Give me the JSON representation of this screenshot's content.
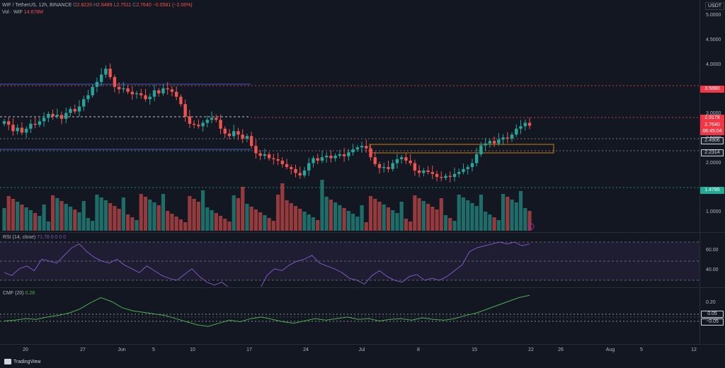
{
  "header": {
    "symbol": "WIF / TetherUS, 12h, BINANCE",
    "o_label": "O",
    "o_value": "2.8220",
    "h_label": "H",
    "h_value": "2.8489",
    "l_label": "L",
    "l_value": "2.7511",
    "c_label": "C",
    "c_value": "2.7640",
    "change": "−0.0581 (−2.06%)",
    "vol_label": "Vol · WIF",
    "vol_value": "14.678M"
  },
  "currency": "USDT",
  "price_axis": [
    "5.0000",
    "4.5000",
    "4.0000",
    "3.5000",
    "3.0000",
    "2.5000",
    "2.0000",
    "1.0000"
  ],
  "price_tags": [
    {
      "text": "3.5880",
      "color": "#f23645"
    },
    {
      "text": "2.9178",
      "color": "#f23645"
    },
    {
      "text": "2.7640",
      "color": "#f23645"
    },
    {
      "text": "06:45:04",
      "color": "#f23645"
    },
    {
      "text": "2.4906",
      "color": "#1e222d"
    },
    {
      "text": "2.2314",
      "color": "#1e222d"
    },
    {
      "text": "1.4780",
      "color": "#22ab94"
    }
  ],
  "rsi": {
    "label": "RSI (14, close)",
    "values": "71.78  0  0  0  0",
    "axis": [
      "60.00",
      "40.00"
    ]
  },
  "cmf": {
    "label": "CMF (20)",
    "value": "0.28",
    "axis": [
      "0.20",
      "0.05",
      "−0.05"
    ]
  },
  "time_axis": [
    "20",
    "27",
    "Jun",
    "5",
    "10",
    "17",
    "24",
    "Jul",
    "8",
    "15",
    "22",
    "26",
    "Aug",
    "5",
    "12"
  ],
  "brand": "TradingView",
  "colors": {
    "up": "#26a69a",
    "down": "#ef5350",
    "rsi": "#7e57c2",
    "cmf": "#4caf50"
  },
  "chart_data": {
    "type": "candlestick",
    "title": "WIF / TetherUS, 12h, BINANCE",
    "levels": [
      3.588,
      2.9178,
      2.4906,
      2.2314,
      1.478
    ],
    "last_close": 2.764
  }
}
